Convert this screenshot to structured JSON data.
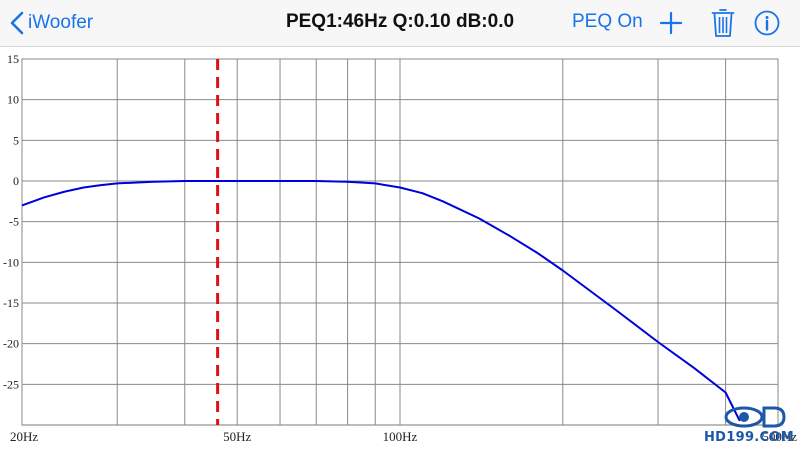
{
  "navbar": {
    "back_label": "iWoofer",
    "title": "PEQ1:46Hz Q:0.10 dB:0.0",
    "peq_toggle_label": "PEQ On",
    "icons": [
      "chevron-left-icon",
      "plus-icon",
      "trash-icon",
      "info-icon"
    ],
    "accent_color": "#1a73e8"
  },
  "chart_data": {
    "type": "line",
    "title": "",
    "xlabel": "",
    "ylabel": "",
    "x_scale": "log",
    "xlim": [
      20,
      500
    ],
    "ylim": [
      -30,
      15
    ],
    "grid": true,
    "y_ticks": [
      15,
      10,
      5,
      0,
      -5,
      -10,
      -15,
      -20,
      -25
    ],
    "x_tick_labels": [
      {
        "value": 20,
        "label": "20Hz"
      },
      {
        "value": 50,
        "label": "50Hz"
      },
      {
        "value": 100,
        "label": "100Hz"
      },
      {
        "value": 500,
        "label": "500Hz"
      }
    ],
    "x_gridlines": [
      20,
      30,
      40,
      50,
      60,
      70,
      80,
      90,
      100,
      200,
      300,
      400,
      500
    ],
    "series": [
      {
        "color": "#0000dd",
        "x": [
          20,
          22,
          24,
          26,
          28,
          30,
          35,
          40,
          50,
          60,
          70,
          80,
          90,
          100,
          110,
          120,
          140,
          160,
          180,
          200,
          250,
          300,
          350,
          400,
          425
        ],
        "y": [
          -3.0,
          -2.0,
          -1.3,
          -0.8,
          -0.5,
          -0.3,
          -0.1,
          0,
          0,
          0,
          0,
          -0.1,
          -0.3,
          -0.8,
          -1.5,
          -2.5,
          -4.6,
          -6.8,
          -8.9,
          -11.0,
          -15.8,
          -19.8,
          -23.0,
          -26.0,
          -29.5
        ]
      }
    ],
    "marker": {
      "frequency": 46,
      "color": "#e01010",
      "style": "dashed"
    }
  },
  "watermark": {
    "text": "HD199.COM"
  }
}
